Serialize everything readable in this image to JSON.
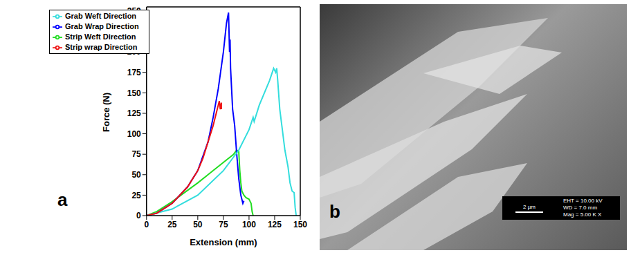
{
  "chart_data": {
    "type": "line",
    "panel_label": "a",
    "x_label": "Extension (mm)",
    "y_label": "Force (N)",
    "xlim": [
      0,
      150
    ],
    "xticks": [
      0,
      25,
      50,
      75,
      100,
      125,
      150
    ],
    "ylim": [
      0,
      255
    ],
    "yticks": [
      0,
      25,
      50,
      75,
      100,
      125,
      150,
      175,
      200,
      225,
      250
    ],
    "grid": false,
    "legend": "upper left",
    "series": [
      {
        "name": "Strip Weft Direction",
        "color": "#22dd22",
        "x": [
          0,
          10,
          25,
          50,
          60,
          75,
          85,
          88,
          90,
          91,
          92,
          93,
          95,
          97,
          100,
          102,
          103,
          104
        ],
        "values": [
          0,
          5,
          17,
          40,
          50,
          65,
          75,
          80,
          78,
          55,
          40,
          30,
          25,
          22,
          20,
          15,
          5,
          0
        ]
      },
      {
        "name": "Grab Wrap Direction",
        "color": "#0000ff",
        "x": [
          0,
          10,
          25,
          40,
          50,
          60,
          65,
          70,
          75,
          78,
          80,
          81,
          81.5,
          82,
          84,
          86,
          88,
          90,
          92,
          94,
          95
        ],
        "values": [
          0,
          3,
          15,
          35,
          55,
          90,
          120,
          155,
          200,
          235,
          248,
          200,
          215,
          180,
          130,
          110,
          75,
          45,
          25,
          15,
          18
        ]
      },
      {
        "name": "Grab Weft Direction",
        "color": "#33dddd",
        "x": [
          0,
          25,
          50,
          75,
          90,
          100,
          104,
          105,
          110,
          120,
          124,
          126,
          127,
          128,
          130,
          132,
          135,
          138,
          140,
          142,
          144,
          145,
          146
        ],
        "values": [
          0,
          8,
          25,
          55,
          80,
          105,
          120,
          115,
          135,
          165,
          180,
          175,
          180,
          165,
          130,
          110,
          80,
          60,
          40,
          30,
          28,
          10,
          0
        ]
      },
      {
        "name": "Strip wrap Direction",
        "color": "#ee1111",
        "x": [
          0,
          10,
          25,
          40,
          50,
          55,
          60,
          65,
          70,
          71,
          72,
          73,
          73
        ],
        "values": [
          0,
          3,
          15,
          35,
          55,
          70,
          90,
          110,
          135,
          140,
          130,
          138,
          130
        ]
      }
    ]
  },
  "panel_b": {
    "label": "b",
    "scale_bar": "2 µm",
    "info": [
      "EHT = 10.00 kV",
      "WD = 7.0 mm",
      "Mag = 5.00 K X"
    ]
  }
}
